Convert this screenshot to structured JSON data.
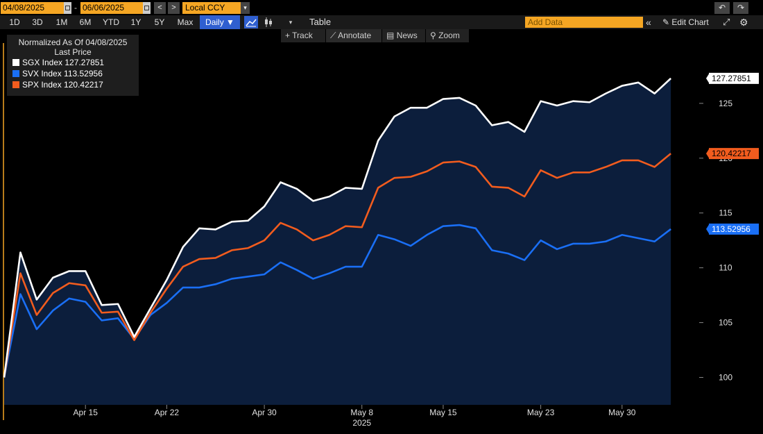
{
  "toolbar": {
    "start_date": "04/08/2025",
    "end_date": "06/06/2025",
    "date_separator": "-",
    "prev_label": "<",
    "next_label": ">",
    "currency": "Local CCY",
    "periods": [
      "1D",
      "3D",
      "1M",
      "6M",
      "YTD",
      "1Y",
      "5Y",
      "Max"
    ],
    "frequency": "Daily ▼",
    "table_label": "Table",
    "add_data_placeholder": "Add Data",
    "edit_chart_label": "Edit Chart",
    "colors": {
      "orange": "#f5a623",
      "active_blue": "#2f5fd0"
    }
  },
  "tools": {
    "track": "Track",
    "annotate": "Annotate",
    "news": "News",
    "zoom": "Zoom"
  },
  "legend": {
    "header_line1": "Normalized As Of 04/08/2025",
    "header_line2": "Last Price",
    "items": [
      {
        "label": "SGX Index 127.27851",
        "color": "#ffffff"
      },
      {
        "label": "SVX Index 113.52956",
        "color": "#1a6ff5"
      },
      {
        "label": "SPX Index 120.42217",
        "color": "#f25c1e"
      }
    ]
  },
  "chart_data": {
    "type": "line",
    "x": [
      "2025-04-08",
      "2025-04-09",
      "2025-04-10",
      "2025-04-11",
      "2025-04-14",
      "2025-04-15",
      "2025-04-16",
      "2025-04-17",
      "2025-04-18",
      "2025-04-21",
      "2025-04-22",
      "2025-04-23",
      "2025-04-24",
      "2025-04-25",
      "2025-04-28",
      "2025-04-29",
      "2025-04-30",
      "2025-05-01",
      "2025-05-02",
      "2025-05-05",
      "2025-05-06",
      "2025-05-07",
      "2025-05-08",
      "2025-05-09",
      "2025-05-12",
      "2025-05-13",
      "2025-05-14",
      "2025-05-15",
      "2025-05-16",
      "2025-05-19",
      "2025-05-20",
      "2025-05-21",
      "2025-05-22",
      "2025-05-23",
      "2025-05-26",
      "2025-05-27",
      "2025-05-28",
      "2025-05-29",
      "2025-05-30",
      "2025-06-02",
      "2025-06-03",
      "2025-06-04",
      "2025-06-05",
      "2025-06-06"
    ],
    "series": [
      {
        "name": "SGX Index",
        "color": "#ffffff",
        "values": [
          100,
          111.4,
          107.1,
          109.1,
          109.7,
          109.7,
          106.6,
          106.7,
          103.7,
          106.3,
          108.9,
          111.9,
          113.6,
          113.5,
          114.2,
          114.3,
          115.6,
          117.8,
          117.2,
          116.1,
          116.5,
          117.3,
          117.2,
          121.6,
          123.8,
          124.6,
          124.6,
          125.4,
          125.5,
          124.8,
          123.0,
          123.3,
          122.4,
          125.2,
          124.8,
          125.2,
          125.1,
          125.9,
          126.6,
          126.9,
          125.9,
          127.27851,
          null,
          null
        ]
      },
      {
        "name": "SPX Index",
        "color": "#f25c1e",
        "values": [
          100,
          109.5,
          105.7,
          107.7,
          108.6,
          108.4,
          105.9,
          106.0,
          103.4,
          105.9,
          108.1,
          110.1,
          110.8,
          110.9,
          111.6,
          111.8,
          112.5,
          114.1,
          113.5,
          112.5,
          113.0,
          113.8,
          113.7,
          117.3,
          118.2,
          118.3,
          118.8,
          119.6,
          119.7,
          119.2,
          117.4,
          117.3,
          116.5,
          118.9,
          118.2,
          118.7,
          118.7,
          119.2,
          119.8,
          119.8,
          119.2,
          120.42217,
          null,
          null
        ]
      },
      {
        "name": "SVX Index",
        "color": "#1a6ff5",
        "values": [
          100,
          107.6,
          104.4,
          106.1,
          107.2,
          106.9,
          105.2,
          105.4,
          103.5,
          105.7,
          106.8,
          108.2,
          108.2,
          108.5,
          109.0,
          109.2,
          109.4,
          110.5,
          109.8,
          109.0,
          109.5,
          110.1,
          110.1,
          113.0,
          112.6,
          112.0,
          113.0,
          113.8,
          113.9,
          113.6,
          111.6,
          111.3,
          110.7,
          112.5,
          111.7,
          112.2,
          112.2,
          112.4,
          113.0,
          112.7,
          112.4,
          113.52956,
          null,
          null
        ]
      }
    ],
    "y_ticks": [
      100,
      105,
      110,
      115,
      120,
      125
    ],
    "x_tick_labels": [
      {
        "label": "Apr 15",
        "index": 5
      },
      {
        "label": "Apr 22",
        "index": 10
      },
      {
        "label": "Apr 30",
        "index": 16
      },
      {
        "label": "May 8",
        "index": 22
      },
      {
        "label": "May 15",
        "index": 27
      },
      {
        "label": "May 23",
        "index": 33
      },
      {
        "label": "May 30",
        "index": 38
      }
    ],
    "year_label": "2025",
    "ylim": [
      97.5,
      130.5
    ],
    "last_values": [
      {
        "text": "127.27851",
        "value": 127.27851,
        "bg": "#ffffff",
        "fg": "#000000"
      },
      {
        "text": "120.42217",
        "value": 120.42217,
        "bg": "#f25c1e",
        "fg": "#000000"
      },
      {
        "text": "113.52956",
        "value": 113.52956,
        "bg": "#1a6ff5",
        "fg": "#ffffff"
      }
    ],
    "fill_color": "#0c1e3c"
  }
}
